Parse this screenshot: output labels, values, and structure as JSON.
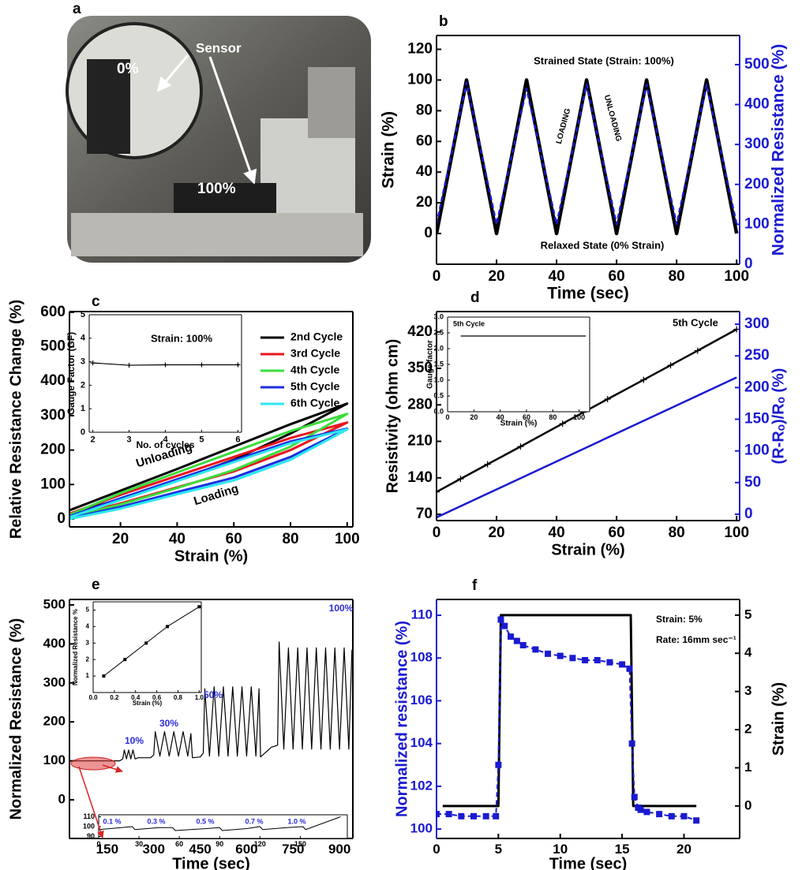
{
  "photo": {
    "panel": "a",
    "labels": [
      "Sensor",
      "0%",
      "100%"
    ]
  },
  "chart_data": [
    {
      "type": "line",
      "panel": "b",
      "xlabel": "Time (sec)",
      "ylabel": "Strain (%)",
      "y2label": "Normalized Resistance (%)",
      "xlim": [
        0,
        101
      ],
      "ylim": [
        -20,
        129
      ],
      "y2lim": [
        0,
        573
      ],
      "xticks": [
        0,
        20,
        40,
        60,
        80,
        100
      ],
      "yticks": [
        0,
        20,
        40,
        60,
        80,
        100,
        120
      ],
      "y2ticks": [
        0,
        100,
        200,
        300,
        400,
        500
      ],
      "ycolor": "#000000",
      "y2color": "#1a1ad0",
      "x": [
        0,
        10,
        20,
        30,
        40,
        50,
        60,
        70,
        80,
        90,
        100
      ],
      "series": [
        {
          "color": "#000000",
          "values": [
            0,
            100,
            0,
            100,
            0,
            100,
            0,
            100,
            0,
            100,
            0
          ]
        },
        {
          "color": "#1a1ad0",
          "axis": "y2",
          "dash": true,
          "values": [
            100,
            455,
            100,
            440,
            100,
            450,
            100,
            450,
            100,
            450,
            100
          ]
        }
      ],
      "annotations": [
        "Strained State (Strain: 100%)",
        "Relaxed State (0% Strain)",
        "LOADING",
        "UNLOADING"
      ]
    },
    {
      "type": "line",
      "panel": "c",
      "xlabel": "Strain (%)",
      "ylabel": "Relative Resistance Change (%)",
      "xlim": [
        2,
        102
      ],
      "ylim": [
        -23,
        602
      ],
      "xticks": [
        20,
        40,
        60,
        80,
        100
      ],
      "yticks": [
        0,
        100,
        200,
        300,
        400,
        500,
        600
      ],
      "legend": "upper right",
      "series": [
        {
          "name": "2nd Cycle",
          "color": "#000000",
          "x": [
            2,
            20,
            40,
            60,
            80,
            100,
            80,
            60,
            40,
            20,
            2
          ],
          "values": [
            15,
            58,
            112,
            172,
            248,
            335,
            275,
            210,
            145,
            82,
            25
          ]
        },
        {
          "name": "3rd Cycle",
          "color": "#e8141e",
          "x": [
            2,
            20,
            40,
            60,
            80,
            100,
            80,
            60,
            40,
            20,
            2
          ],
          "values": [
            8,
            45,
            92,
            138,
            200,
            280,
            235,
            180,
            125,
            70,
            15
          ]
        },
        {
          "name": "4th Cycle",
          "color": "#3ddc3d",
          "x": [
            2,
            20,
            40,
            60,
            80,
            100,
            80,
            60,
            40,
            20,
            2
          ],
          "values": [
            5,
            42,
            90,
            142,
            210,
            305,
            255,
            195,
            135,
            75,
            12
          ]
        },
        {
          "name": "5th Cycle",
          "color": "#1e2ee0",
          "x": [
            2,
            20,
            40,
            60,
            80,
            100,
            80,
            60,
            40,
            20,
            2
          ],
          "values": [
            2,
            35,
            78,
            120,
            180,
            262,
            225,
            170,
            115,
            60,
            8
          ]
        },
        {
          "name": "6th Cycle",
          "color": "#2ee6f0",
          "x": [
            2,
            20,
            40,
            60,
            80,
            100,
            80,
            60,
            40,
            20,
            2
          ],
          "values": [
            0,
            30,
            72,
            112,
            172,
            260,
            220,
            165,
            110,
            55,
            5
          ]
        }
      ],
      "annotations": [
        "Unloading",
        "Loading"
      ]
    },
    {
      "type": "line",
      "panel": "d",
      "xlabel": "Strain (%)",
      "ylabel": "Resistivity (ohm cm)",
      "y2label": "(R-Rₒ)/Rₒ (%)",
      "xlim": [
        0,
        101
      ],
      "ylim": [
        58,
        459
      ],
      "y2lim": [
        -10,
        320
      ],
      "xticks": [
        0,
        20,
        40,
        60,
        80,
        100
      ],
      "yticks": [
        70,
        140,
        210,
        280,
        350,
        420
      ],
      "y2ticks": [
        0,
        50,
        100,
        150,
        200,
        250,
        300
      ],
      "ycolor": "#000000",
      "y2color": "#1a1ad0",
      "series": [
        {
          "color": "#000000",
          "marker": "plus",
          "x": [
            0,
            8,
            17,
            28,
            42,
            49,
            57,
            69,
            78,
            87,
            100
          ],
          "values": [
            113,
            138,
            166,
            200,
            244,
            266,
            291,
            328,
            356,
            384,
            425
          ]
        },
        {
          "color": "#1a1ad0",
          "axis": "y2",
          "x": [
            0,
            100
          ],
          "values": [
            -5,
            216
          ]
        }
      ],
      "annotations": [
        "5th Cycle"
      ]
    },
    {
      "type": "line",
      "panel": "e",
      "xlabel": "Time (sec)",
      "ylabel": "Normalized Resistance (%)",
      "xlim": [
        28,
        943
      ],
      "ylim": [
        -99,
        514
      ],
      "xticks": [
        150,
        300,
        450,
        600,
        750,
        900
      ],
      "yticks": [
        0,
        100,
        200,
        300,
        400,
        500
      ],
      "annotation_color": "#2b2bd6",
      "series": [
        {
          "color": "#000000",
          "x": [
            28,
            190,
            200,
            205,
            212,
            219,
            226,
            233,
            240,
            250,
            290,
            300,
            305,
            320,
            335,
            350,
            365,
            380,
            395,
            410,
            420,
            425,
            450,
            460,
            465,
            480,
            495,
            510,
            525,
            540,
            555,
            570,
            585,
            600,
            615,
            630,
            640,
            645,
            680,
            700,
            705,
            720,
            735,
            750,
            765,
            780,
            795,
            810,
            825,
            840,
            855,
            870,
            885,
            900,
            915,
            930,
            940
          ],
          "values": [
            100,
            100,
            105,
            128,
            105,
            128,
            105,
            128,
            105,
            108,
            108,
            115,
            175,
            112,
            175,
            112,
            175,
            112,
            175,
            112,
            170,
            108,
            110,
            120,
            285,
            112,
            290,
            112,
            290,
            112,
            290,
            112,
            290,
            112,
            290,
            112,
            285,
            110,
            135,
            140,
            405,
            130,
            390,
            130,
            390,
            130,
            390,
            130,
            390,
            130,
            390,
            130,
            390,
            130,
            390,
            130,
            385
          ]
        }
      ],
      "annotations": [
        "10%",
        "30%",
        "50%",
        "100%"
      ]
    },
    {
      "type": "line",
      "panel": "f",
      "xlabel": "Time (sec)",
      "ylabel": "Normalized resistance (%)",
      "y2label": "Strain (%)",
      "xlim": [
        0,
        24.5
      ],
      "ylim": [
        99.56,
        110.74
      ],
      "y2lim": [
        -0.85,
        5.41
      ],
      "xticks": [
        0,
        5,
        10,
        15,
        20
      ],
      "yticks": [
        100,
        102,
        104,
        106,
        108,
        110
      ],
      "y2ticks": [
        0,
        1,
        2,
        3,
        4,
        5
      ],
      "ycolor": "#1a1ad0",
      "y2color": "#000000",
      "series": [
        {
          "color": "#000000",
          "axis": "y2",
          "x": [
            0.5,
            5,
            5.2,
            15.7,
            15.9,
            21
          ],
          "values": [
            0,
            0,
            5,
            5,
            0,
            0
          ]
        },
        {
          "color": "#1a1ad0",
          "dash": true,
          "marker": "square",
          "x": [
            0,
            1,
            2,
            3,
            4,
            4.8,
            5,
            5.2,
            5.5,
            6,
            6.5,
            7,
            8,
            9,
            10,
            11,
            12,
            13,
            14,
            15,
            15.6,
            15.8,
            16,
            16.3,
            16.5,
            17,
            18,
            19,
            20,
            21
          ],
          "values": [
            100.7,
            100.7,
            100.6,
            100.6,
            100.6,
            100.6,
            103,
            109.8,
            109.5,
            109,
            108.8,
            108.6,
            108.4,
            108.2,
            108.1,
            108,
            107.9,
            107.9,
            107.8,
            107.7,
            107.5,
            104,
            101.5,
            101,
            100.9,
            100.8,
            100.7,
            100.6,
            100.6,
            100.4
          ]
        }
      ],
      "annotations": [
        "Strain: 5%",
        "Rate: 16mm sec⁻¹"
      ]
    },
    {
      "type": "line",
      "xlabel": "No. of cycles",
      "ylabel": "Gauge Factor (GF)",
      "xlim": [
        1.9,
        6.1
      ],
      "ylim": [
        0,
        5
      ],
      "xticks": [
        2,
        3,
        4,
        5,
        6
      ],
      "yticks": [
        0,
        1,
        2,
        3,
        4,
        5
      ],
      "series": [
        {
          "color": "#000000",
          "marker": "plus",
          "x": [
            2,
            3,
            4,
            5,
            6
          ],
          "values": [
            2.95,
            2.85,
            2.87,
            2.87,
            2.87
          ]
        }
      ],
      "annotations": [
        "Strain: 100%"
      ]
    },
    {
      "type": "line",
      "xlabel": "Strain (%)",
      "ylabel": "Gauge factor",
      "xlim": [
        0,
        108
      ],
      "ylim": [
        0,
        3
      ],
      "xticks": [
        0,
        20,
        40,
        60,
        80,
        100
      ],
      "yticks": [
        {
          "value": 0,
          "label": "0.0"
        },
        0.5,
        {
          "value": 1,
          "label": "1.0"
        },
        1.5,
        {
          "value": 2,
          "label": "2.0"
        },
        2.5,
        {
          "value": 3,
          "label": "3.0"
        }
      ],
      "series": [
        {
          "color": "#000000",
          "x": [
            10,
            105
          ],
          "values": [
            2.4,
            2.4
          ]
        }
      ],
      "annotations": [
        "5th Cycle"
      ]
    },
    {
      "type": "line",
      "xlabel": "Strain (%)",
      "ylabel": "Normalized Resistance %",
      "xlim": [
        0,
        1.02
      ],
      "ylim": [
        0,
        5.5
      ],
      "xticks": [
        {
          "value": 0,
          "label": "0.0"
        },
        0.2,
        0.4,
        0.6,
        0.8,
        {
          "value": 1,
          "label": "1.0"
        }
      ],
      "yticks": [
        1,
        2,
        3,
        4,
        5
      ],
      "series": [
        {
          "color": "#000000",
          "marker": "square",
          "x": [
            0.1,
            0.3,
            0.5,
            0.7,
            1.0
          ],
          "values": [
            1,
            2,
            3,
            4,
            5.2
          ]
        }
      ]
    },
    {
      "type": "line",
      "xlim": [
        0,
        185
      ],
      "ylim": [
        88,
        112
      ],
      "xticks": [
        0,
        30,
        60,
        90,
        120,
        150
      ],
      "yticks": [
        90,
        100,
        110
      ],
      "annotation_color": "#2b2bd6",
      "series": [
        {
          "color": "#000000",
          "x": [
            0,
            25,
            27,
            45,
            55,
            57,
            80,
            90,
            92,
            110,
            120,
            122,
            140,
            152,
            154,
            180
          ],
          "values": [
            97,
            100,
            97,
            99,
            99,
            96,
            98,
            99,
            96,
            98,
            100,
            97,
            99,
            100,
            97,
            110
          ]
        }
      ],
      "annotations": [
        "0.1 %",
        "0.3 %",
        "0.5 %",
        "0.7 %",
        "1.0 %"
      ]
    }
  ]
}
